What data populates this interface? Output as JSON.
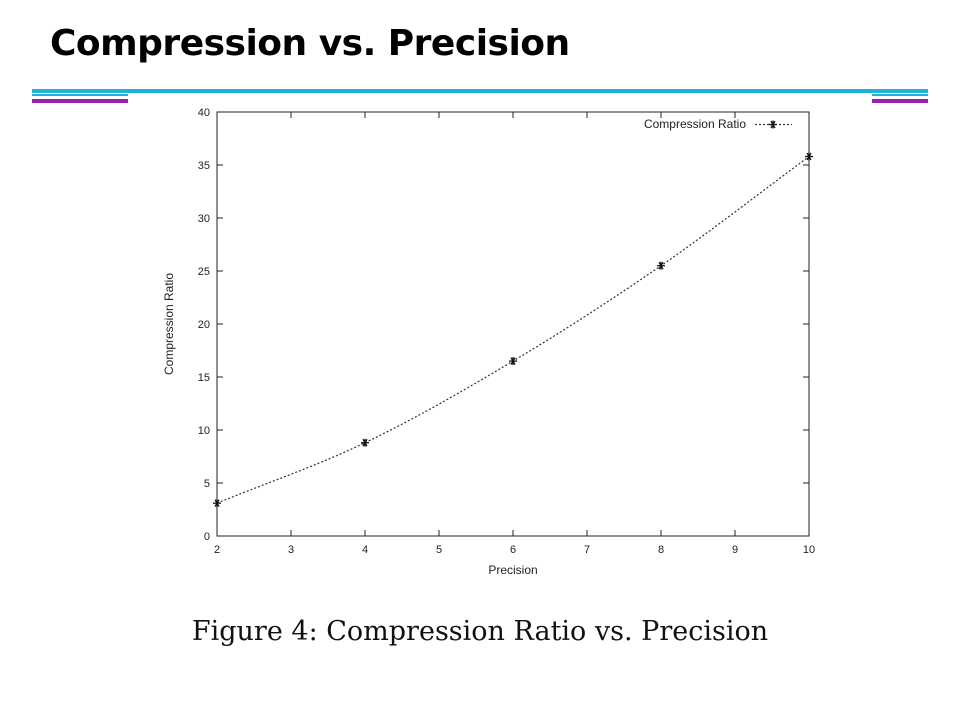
{
  "slide": {
    "title": "Compression vs. Precision"
  },
  "caption": "Figure 4:  Compression Ratio vs.  Precision",
  "colors": {
    "accent_cyan": "#1fb2d6",
    "accent_purple": "#9b1fb4",
    "series": "#333333"
  },
  "chart_data": {
    "type": "line",
    "title": "",
    "xlabel": "Precision",
    "ylabel": "Compression Ratio",
    "xlim": [
      2,
      10
    ],
    "ylim": [
      0,
      40
    ],
    "xticks": [
      2,
      3,
      4,
      5,
      6,
      7,
      8,
      9,
      10
    ],
    "yticks": [
      0,
      5,
      10,
      15,
      20,
      25,
      30,
      35,
      40
    ],
    "grid": false,
    "legend": "top-right",
    "series": [
      {
        "name": "Compression Ratio",
        "style": "dotted line with asterisk markers",
        "x": [
          2,
          4,
          6,
          8,
          10
        ],
        "y": [
          3.1,
          8.8,
          16.5,
          25.5,
          35.8
        ]
      }
    ]
  }
}
